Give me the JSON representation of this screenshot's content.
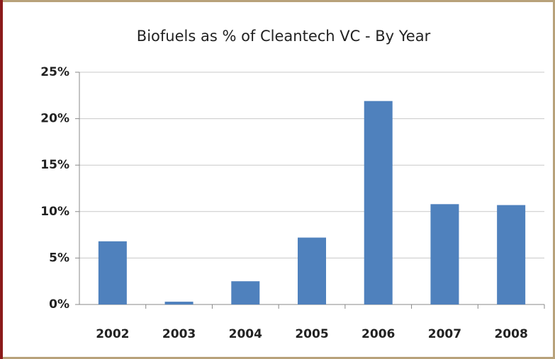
{
  "chart_data": {
    "type": "bar",
    "title": "Biofuels as % of Cleantech VC - By Year",
    "categories": [
      "2002",
      "2003",
      "2004",
      "2005",
      "2006",
      "2007",
      "2008"
    ],
    "values": [
      6.8,
      0.3,
      2.5,
      7.2,
      21.9,
      10.8,
      10.7
    ],
    "color": "#4f81bd",
    "ylim": [
      0,
      25
    ],
    "yticks": [
      {
        "value": 0,
        "label": "0%"
      },
      {
        "value": 5,
        "label": "5%"
      },
      {
        "value": 10,
        "label": "10%"
      },
      {
        "value": 15,
        "label": "15%"
      },
      {
        "value": 20,
        "label": "20%"
      },
      {
        "value": 25,
        "label": "25%"
      }
    ],
    "grid": true
  }
}
